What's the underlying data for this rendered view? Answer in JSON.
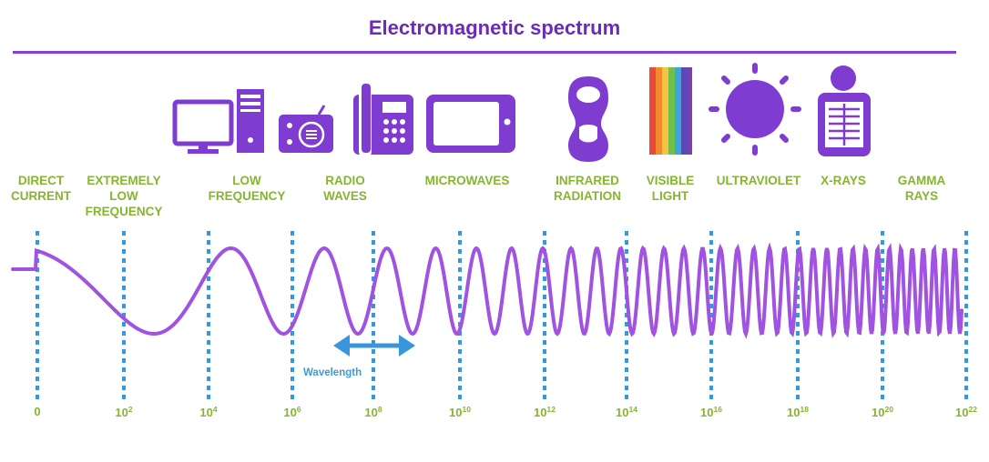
{
  "title": "Electromagnetic spectrum",
  "colors": {
    "title": "#6a2bb8",
    "icons": "#7f3cd0",
    "wave": "#a052e0",
    "labels": "#86b52f",
    "dashed_lines": "#3a96da",
    "arrow": "#3a96da"
  },
  "bands": [
    {
      "id": "direct-current",
      "lines": [
        "DIRECT",
        "CURRENT"
      ]
    },
    {
      "id": "extremely-low-frequency",
      "lines": [
        "EXTREMELY",
        "LOW",
        "FREQUENCY"
      ],
      "icon": "power-pylon-icon"
    },
    {
      "id": "low-frequency",
      "lines": [
        "LOW",
        "FREQUENCY"
      ],
      "icon": "computer-icon"
    },
    {
      "id": "radio-waves",
      "lines": [
        "RADIO",
        "WAVES"
      ],
      "icon": "radio-icon"
    },
    {
      "id": "microwaves",
      "lines": [
        "MICROWAVES"
      ],
      "icon": "microwave-oven-icon"
    },
    {
      "id": "infrared-radiation",
      "lines": [
        "INFRARED",
        "RADIATION"
      ],
      "icon": "tv-remote-icon"
    },
    {
      "id": "visible-light",
      "lines": [
        "VISIBLE",
        "LIGHT"
      ],
      "icon": "rainbow-icon"
    },
    {
      "id": "ultraviolet",
      "lines": [
        "ULTRAVIOLET"
      ],
      "icon": "sun-icon"
    },
    {
      "id": "x-rays",
      "lines": [
        "X-RAYS"
      ],
      "icon": "x-ray-person-icon"
    },
    {
      "id": "gamma-rays",
      "lines": [
        "GAMMA",
        "RAYS"
      ]
    }
  ],
  "ticks": [
    {
      "base": "0",
      "exp": ""
    },
    {
      "base": "10",
      "exp": "2"
    },
    {
      "base": "10",
      "exp": "4"
    },
    {
      "base": "10",
      "exp": "6"
    },
    {
      "base": "10",
      "exp": "8"
    },
    {
      "base": "10",
      "exp": "10"
    },
    {
      "base": "10",
      "exp": "12"
    },
    {
      "base": "10",
      "exp": "14"
    },
    {
      "base": "10",
      "exp": "16"
    },
    {
      "base": "10",
      "exp": "18"
    },
    {
      "base": "10",
      "exp": "20"
    },
    {
      "base": "10",
      "exp": "22"
    }
  ],
  "wavelength_label": "Wavelength"
}
